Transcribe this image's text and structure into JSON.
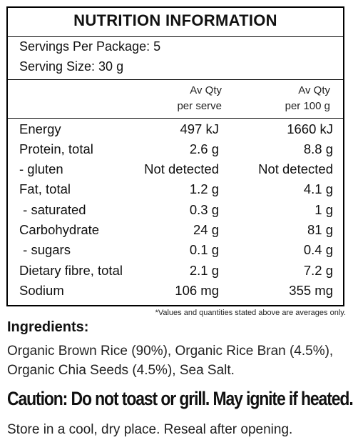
{
  "title": "NUTRITION INFORMATION",
  "servings_per_package": "Servings Per Package: 5",
  "serving_size": "Serving Size: 30 g",
  "columns": {
    "per_serve": [
      "Av Qty",
      "per serve"
    ],
    "per_100g": [
      "Av Qty",
      "per 100 g"
    ]
  },
  "rows": [
    {
      "name": "Energy",
      "per_serve": "497 kJ",
      "per_100g": "1660 kJ"
    },
    {
      "name": "Protein, total",
      "per_serve": "2.6 g",
      "per_100g": "8.8 g"
    },
    {
      "name": "- gluten",
      "per_serve": "Not detected",
      "per_100g": "Not detected"
    },
    {
      "name": "Fat, total",
      "per_serve": "1.2 g",
      "per_100g": "4.1 g"
    },
    {
      "name": " - saturated",
      "per_serve": "0.3 g",
      "per_100g": "1 g"
    },
    {
      "name": "Carbohydrate",
      "per_serve": "24 g",
      "per_100g": "81 g"
    },
    {
      "name": " - sugars",
      "per_serve": "0.1 g",
      "per_100g": "0.4 g"
    },
    {
      "name": "Dietary fibre, total",
      "per_serve": "2.1 g",
      "per_100g": "7.2 g"
    },
    {
      "name": "Sodium",
      "per_serve": "106 mg",
      "per_100g": "355 mg"
    }
  ],
  "footnote": "*Values and quantities stated above are averages only.",
  "ingredients_heading": "Ingredients:",
  "ingredients_text": "Organic Brown Rice (90%), Organic Rice Bran (4.5%), Organic Chia Seeds (4.5%), Sea Salt.",
  "caution": "Caution: Do not toast or grill. May ignite if heated.",
  "storage": "Store in a cool, dry place.  Reseal after opening."
}
